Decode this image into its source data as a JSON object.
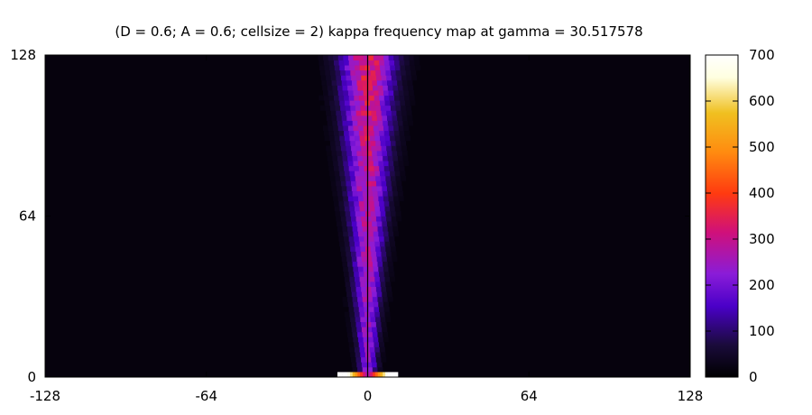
{
  "chart_data": {
    "type": "heatmap",
    "title": "(D = 0.6; A = 0.6; cellsize = 2) kappa frequency map at gamma = 30.517578",
    "xlabel": "",
    "ylabel": "",
    "xlim": [
      -128,
      128
    ],
    "ylim": [
      0,
      128
    ],
    "x_ticks": [
      "-128",
      "-64",
      "0",
      "64",
      "128"
    ],
    "y_ticks": [
      "0",
      "64",
      "128"
    ],
    "x_tick_values": [
      -128,
      -64,
      0,
      64,
      128
    ],
    "y_tick_values": [
      0,
      64,
      128
    ],
    "cell_size": 2,
    "colorbar": {
      "range": [
        0,
        700
      ],
      "ticks": [
        "0",
        "100",
        "200",
        "300",
        "400",
        "500",
        "600",
        "700"
      ],
      "tick_values": [
        0,
        100,
        200,
        300,
        400,
        500,
        600,
        700
      ],
      "palette": "black-purple-red-orange-yellow-white"
    },
    "features": {
      "central_beam": {
        "x_center": 0,
        "half_width_at_y0": 3,
        "half_width_at_y128": 10,
        "peak_value_top": 340,
        "peak_value_bottom": 230
      },
      "background_value": 15,
      "base_hotspot": {
        "x_range": [
          -12,
          12
        ],
        "y_range": [
          0,
          2
        ],
        "peak_value": 700
      },
      "center_line": {
        "x": 0,
        "color": "#000000"
      }
    }
  },
  "colors": {
    "palette_stops": [
      "#000000",
      "#1a0b3b",
      "#4a00c8",
      "#8a1cd8",
      "#d0107a",
      "#ff3a10",
      "#ff8c10",
      "#f0c020",
      "#ffffe0",
      "#ffffff"
    ]
  }
}
